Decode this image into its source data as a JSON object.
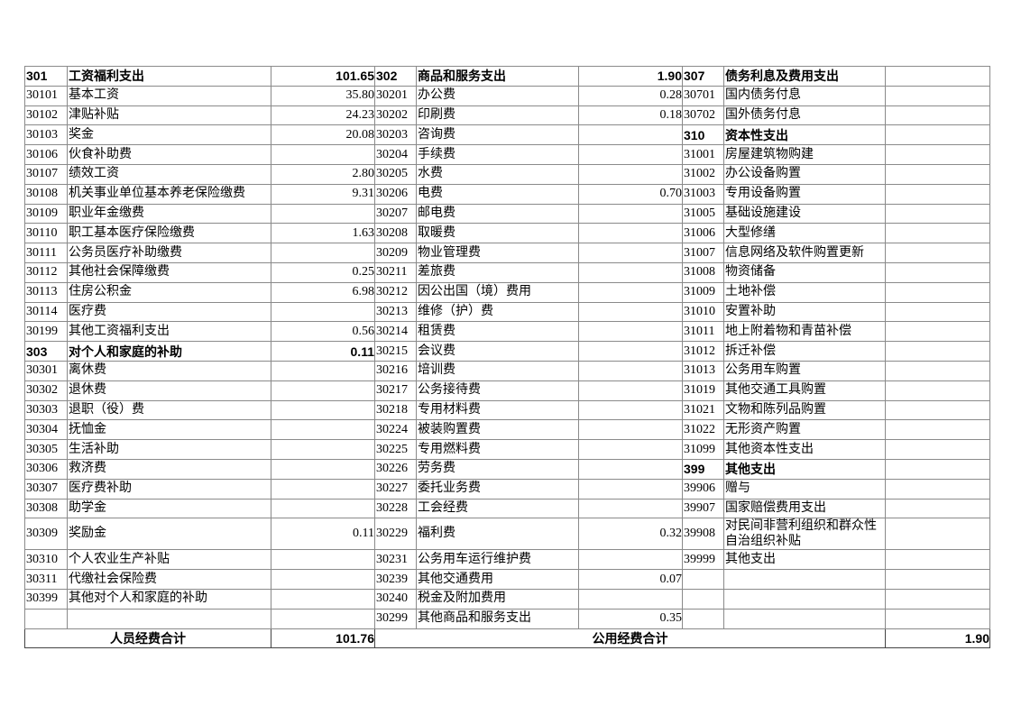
{
  "table": {
    "rows": [
      [
        {
          "t": "301",
          "b": 1
        },
        {
          "t": "工资福利支出",
          "b": 1
        },
        {
          "t": "101.65",
          "b": 1
        },
        {
          "t": "302",
          "b": 1
        },
        {
          "t": "商品和服务支出",
          "b": 1
        },
        {
          "t": "1.90",
          "b": 1
        },
        {
          "t": "307",
          "b": 1
        },
        {
          "t": "债务利息及费用支出",
          "b": 1
        },
        {
          "t": ""
        }
      ],
      [
        {
          "t": "30101"
        },
        {
          "t": "基本工资"
        },
        {
          "t": "35.80"
        },
        {
          "t": "30201"
        },
        {
          "t": "办公费"
        },
        {
          "t": "0.28"
        },
        {
          "t": "30701"
        },
        {
          "t": "国内债务付息"
        },
        {
          "t": ""
        }
      ],
      [
        {
          "t": "30102"
        },
        {
          "t": "津贴补贴"
        },
        {
          "t": "24.23"
        },
        {
          "t": "30202"
        },
        {
          "t": "印刷费"
        },
        {
          "t": "0.18"
        },
        {
          "t": "30702"
        },
        {
          "t": "国外债务付息"
        },
        {
          "t": ""
        }
      ],
      [
        {
          "t": "30103"
        },
        {
          "t": "奖金"
        },
        {
          "t": "20.08"
        },
        {
          "t": "30203"
        },
        {
          "t": "咨询费"
        },
        {
          "t": ""
        },
        {
          "t": "310",
          "b": 1
        },
        {
          "t": "资本性支出",
          "b": 1
        },
        {
          "t": ""
        }
      ],
      [
        {
          "t": "30106"
        },
        {
          "t": "伙食补助费"
        },
        {
          "t": ""
        },
        {
          "t": "30204"
        },
        {
          "t": "手续费"
        },
        {
          "t": ""
        },
        {
          "t": "31001"
        },
        {
          "t": "房屋建筑物购建"
        },
        {
          "t": ""
        }
      ],
      [
        {
          "t": "30107"
        },
        {
          "t": "绩效工资"
        },
        {
          "t": "2.80"
        },
        {
          "t": "30205"
        },
        {
          "t": "水费"
        },
        {
          "t": ""
        },
        {
          "t": "31002"
        },
        {
          "t": "办公设备购置"
        },
        {
          "t": ""
        }
      ],
      [
        {
          "t": "30108"
        },
        {
          "t": "机关事业单位基本养老保险缴费"
        },
        {
          "t": "9.31"
        },
        {
          "t": "30206"
        },
        {
          "t": "电费"
        },
        {
          "t": "0.70"
        },
        {
          "t": "31003"
        },
        {
          "t": "专用设备购置"
        },
        {
          "t": ""
        }
      ],
      [
        {
          "t": "30109"
        },
        {
          "t": "职业年金缴费"
        },
        {
          "t": ""
        },
        {
          "t": "30207"
        },
        {
          "t": "邮电费"
        },
        {
          "t": ""
        },
        {
          "t": "31005"
        },
        {
          "t": "基础设施建设"
        },
        {
          "t": ""
        }
      ],
      [
        {
          "t": "30110"
        },
        {
          "t": "职工基本医疗保险缴费"
        },
        {
          "t": "1.63"
        },
        {
          "t": "30208"
        },
        {
          "t": "取暖费"
        },
        {
          "t": ""
        },
        {
          "t": "31006"
        },
        {
          "t": "大型修缮"
        },
        {
          "t": ""
        }
      ],
      [
        {
          "t": "30111"
        },
        {
          "t": "公务员医疗补助缴费"
        },
        {
          "t": ""
        },
        {
          "t": "30209"
        },
        {
          "t": "物业管理费"
        },
        {
          "t": ""
        },
        {
          "t": "31007"
        },
        {
          "t": "信息网络及软件购置更新"
        },
        {
          "t": ""
        }
      ],
      [
        {
          "t": "30112"
        },
        {
          "t": "其他社会保障缴费"
        },
        {
          "t": "0.25"
        },
        {
          "t": "30211"
        },
        {
          "t": "差旅费"
        },
        {
          "t": ""
        },
        {
          "t": "31008"
        },
        {
          "t": "物资储备"
        },
        {
          "t": ""
        }
      ],
      [
        {
          "t": "30113"
        },
        {
          "t": "住房公积金"
        },
        {
          "t": "6.98"
        },
        {
          "t": "30212"
        },
        {
          "t": "因公出国（境）费用"
        },
        {
          "t": ""
        },
        {
          "t": "31009"
        },
        {
          "t": "土地补偿"
        },
        {
          "t": ""
        }
      ],
      [
        {
          "t": "30114"
        },
        {
          "t": "医疗费"
        },
        {
          "t": ""
        },
        {
          "t": "30213"
        },
        {
          "t": "维修（护）费"
        },
        {
          "t": ""
        },
        {
          "t": "31010"
        },
        {
          "t": "安置补助"
        },
        {
          "t": ""
        }
      ],
      [
        {
          "t": "30199"
        },
        {
          "t": "其他工资福利支出"
        },
        {
          "t": "0.56"
        },
        {
          "t": "30214"
        },
        {
          "t": "租赁费"
        },
        {
          "t": ""
        },
        {
          "t": "31011"
        },
        {
          "t": "地上附着物和青苗补偿"
        },
        {
          "t": ""
        }
      ],
      [
        {
          "t": "303",
          "b": 1
        },
        {
          "t": "对个人和家庭的补助",
          "b": 1
        },
        {
          "t": "0.11",
          "b": 1
        },
        {
          "t": "30215"
        },
        {
          "t": "会议费"
        },
        {
          "t": ""
        },
        {
          "t": "31012"
        },
        {
          "t": "拆迁补偿"
        },
        {
          "t": ""
        }
      ],
      [
        {
          "t": "30301"
        },
        {
          "t": "离休费"
        },
        {
          "t": ""
        },
        {
          "t": "30216"
        },
        {
          "t": "培训费"
        },
        {
          "t": ""
        },
        {
          "t": "31013"
        },
        {
          "t": "公务用车购置"
        },
        {
          "t": ""
        }
      ],
      [
        {
          "t": "30302"
        },
        {
          "t": "退休费"
        },
        {
          "t": ""
        },
        {
          "t": "30217"
        },
        {
          "t": "公务接待费"
        },
        {
          "t": ""
        },
        {
          "t": "31019"
        },
        {
          "t": "其他交通工具购置"
        },
        {
          "t": ""
        }
      ],
      [
        {
          "t": "30303"
        },
        {
          "t": "退职（役）费"
        },
        {
          "t": ""
        },
        {
          "t": "30218"
        },
        {
          "t": "专用材料费"
        },
        {
          "t": ""
        },
        {
          "t": "31021"
        },
        {
          "t": "文物和陈列品购置"
        },
        {
          "t": ""
        }
      ],
      [
        {
          "t": "30304"
        },
        {
          "t": "抚恤金"
        },
        {
          "t": ""
        },
        {
          "t": "30224"
        },
        {
          "t": "被装购置费"
        },
        {
          "t": ""
        },
        {
          "t": "31022"
        },
        {
          "t": "无形资产购置"
        },
        {
          "t": ""
        }
      ],
      [
        {
          "t": "30305"
        },
        {
          "t": "生活补助"
        },
        {
          "t": ""
        },
        {
          "t": "30225"
        },
        {
          "t": "专用燃料费"
        },
        {
          "t": ""
        },
        {
          "t": "31099"
        },
        {
          "t": "其他资本性支出"
        },
        {
          "t": ""
        }
      ],
      [
        {
          "t": "30306"
        },
        {
          "t": "救济费"
        },
        {
          "t": ""
        },
        {
          "t": "30226"
        },
        {
          "t": "劳务费"
        },
        {
          "t": ""
        },
        {
          "t": "399",
          "b": 1
        },
        {
          "t": "其他支出",
          "b": 1
        },
        {
          "t": ""
        }
      ],
      [
        {
          "t": "30307"
        },
        {
          "t": "医疗费补助"
        },
        {
          "t": ""
        },
        {
          "t": "30227"
        },
        {
          "t": "委托业务费"
        },
        {
          "t": ""
        },
        {
          "t": "39906"
        },
        {
          "t": "赠与"
        },
        {
          "t": ""
        }
      ],
      [
        {
          "t": "30308"
        },
        {
          "t": "助学金"
        },
        {
          "t": ""
        },
        {
          "t": "30228"
        },
        {
          "t": "工会经费"
        },
        {
          "t": ""
        },
        {
          "t": "39907"
        },
        {
          "t": "国家赔偿费用支出"
        },
        {
          "t": ""
        }
      ],
      [
        {
          "t": "30309"
        },
        {
          "t": "奖励金"
        },
        {
          "t": "0.11"
        },
        {
          "t": "30229"
        },
        {
          "t": "福利费"
        },
        {
          "t": "0.32"
        },
        {
          "t": "39908"
        },
        {
          "t": "对民间非营利组织和群众性自治组织补贴"
        },
        {
          "t": ""
        }
      ],
      [
        {
          "t": "30310"
        },
        {
          "t": "个人农业生产补贴"
        },
        {
          "t": ""
        },
        {
          "t": "30231"
        },
        {
          "t": "公务用车运行维护费"
        },
        {
          "t": ""
        },
        {
          "t": "39999"
        },
        {
          "t": "其他支出"
        },
        {
          "t": ""
        }
      ],
      [
        {
          "t": "30311"
        },
        {
          "t": "代缴社会保险费"
        },
        {
          "t": ""
        },
        {
          "t": "30239"
        },
        {
          "t": "其他交通费用"
        },
        {
          "t": "0.07"
        },
        {
          "t": ""
        },
        {
          "t": ""
        },
        {
          "t": ""
        }
      ],
      [
        {
          "t": "30399"
        },
        {
          "t": "其他对个人和家庭的补助"
        },
        {
          "t": ""
        },
        {
          "t": "30240"
        },
        {
          "t": "税金及附加费用"
        },
        {
          "t": ""
        },
        {
          "t": ""
        },
        {
          "t": ""
        },
        {
          "t": ""
        }
      ],
      [
        {
          "t": ""
        },
        {
          "t": ""
        },
        {
          "t": ""
        },
        {
          "t": "30299"
        },
        {
          "t": "其他商品和服务支出"
        },
        {
          "t": "0.35"
        },
        {
          "t": ""
        },
        {
          "t": ""
        },
        {
          "t": ""
        }
      ]
    ],
    "totals": {
      "personnel_label": "人员经费合计",
      "personnel_value": "101.76",
      "public_label": "公用经费合计",
      "public_value": "1.90"
    }
  }
}
